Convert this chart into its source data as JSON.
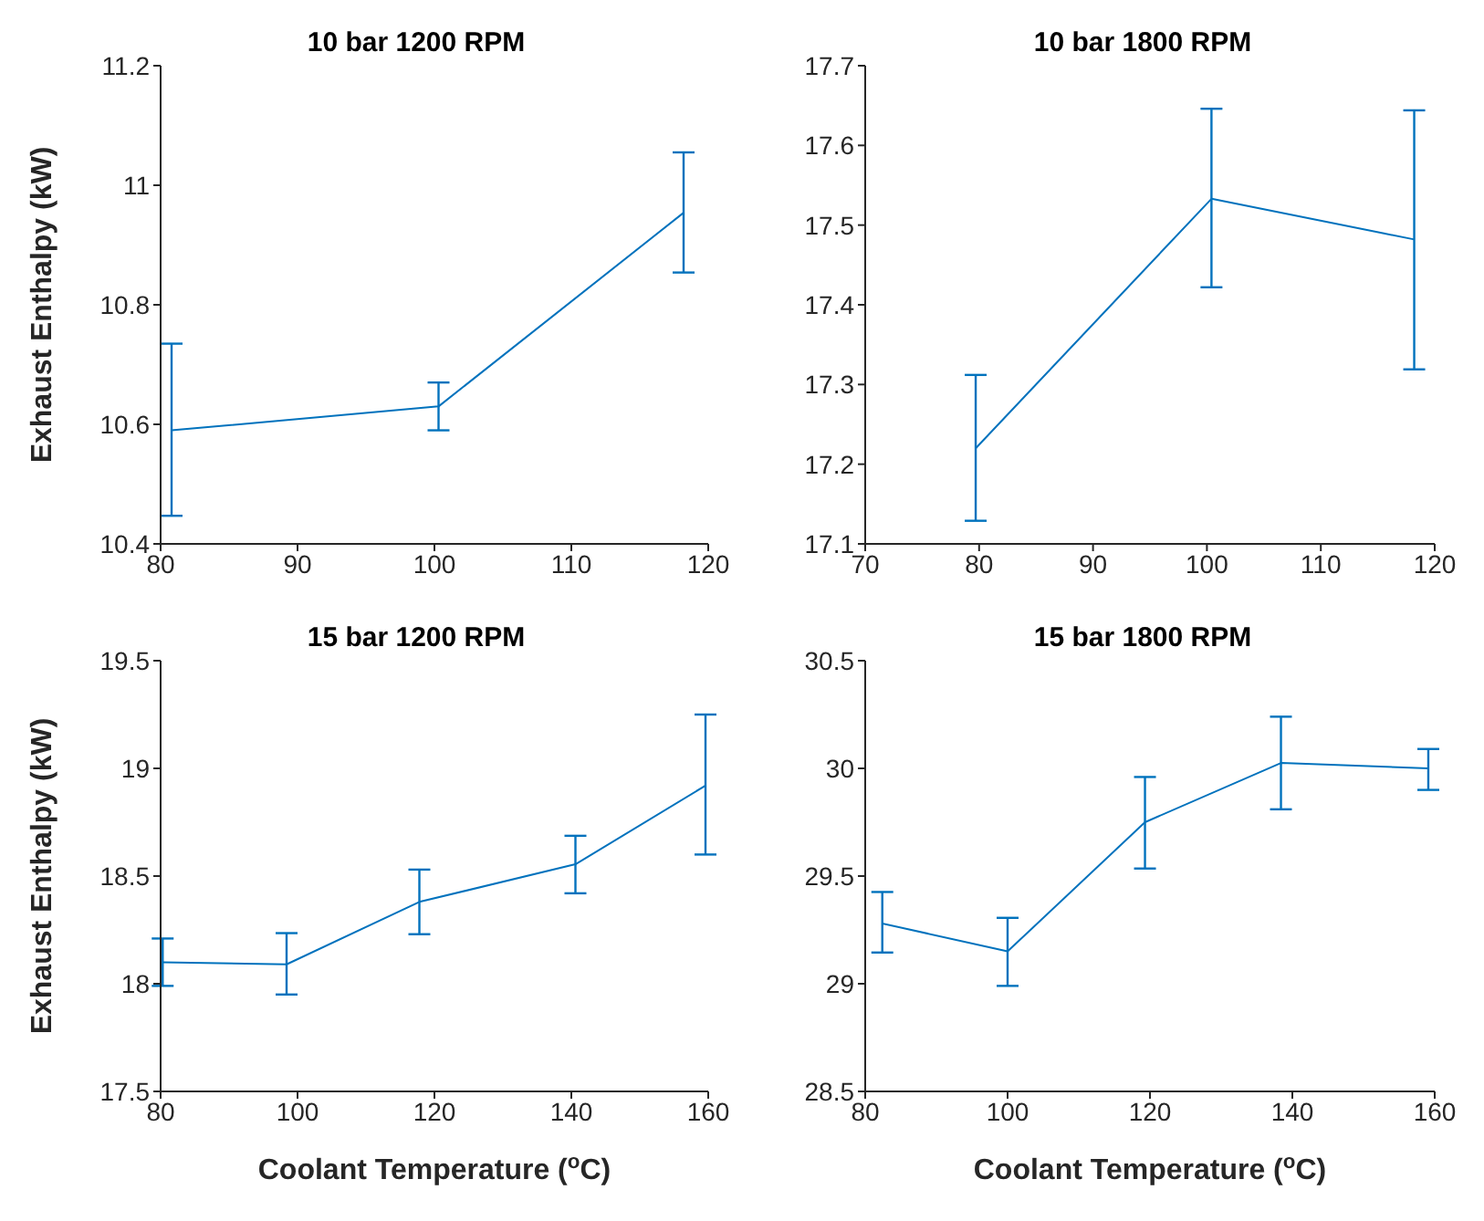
{
  "chart_data": [
    {
      "type": "line",
      "title": "10 bar 1200 RPM",
      "ylabel": "Exhaust Enthalpy (kW)",
      "x": [
        80.8,
        100.3,
        118.2
      ],
      "series": [
        {
          "color": "#0072bd",
          "values": [
            10.59,
            10.63,
            10.954
          ],
          "errors": [
            [
              10.447,
              10.735
            ],
            [
              10.59,
              10.67
            ],
            [
              10.854,
              11.055
            ]
          ]
        }
      ],
      "xlim": [
        80,
        120
      ],
      "xticks": [
        80,
        90,
        100,
        110,
        120
      ],
      "ylim": [
        10.4,
        11.2
      ],
      "yticks": [
        10.4,
        10.6,
        10.8,
        11,
        11.2
      ],
      "grid": false,
      "legend": false,
      "marker": "none",
      "line_style": "solid"
    },
    {
      "type": "line",
      "title": "10 bar 1800 RPM",
      "x": [
        79.7,
        100.4,
        118.2
      ],
      "series": [
        {
          "color": "#0072bd",
          "values": [
            17.22,
            17.533,
            17.482
          ],
          "errors": [
            [
              17.129,
              17.312
            ],
            [
              17.422,
              17.646
            ],
            [
              17.319,
              17.644
            ]
          ]
        }
      ],
      "xlim": [
        70,
        120
      ],
      "xticks": [
        70,
        80,
        90,
        100,
        110,
        120
      ],
      "ylim": [
        17.1,
        17.7
      ],
      "yticks": [
        17.1,
        17.2,
        17.3,
        17.4,
        17.5,
        17.6,
        17.7
      ],
      "grid": false,
      "legend": false,
      "marker": "none",
      "line_style": "solid"
    },
    {
      "type": "line",
      "title": "15 bar 1200 RPM",
      "xlabel": "Coolant Temperature ($^{o}$C)",
      "ylabel": "Exhaust Enthalpy (kW)",
      "x": [
        80.3,
        98.4,
        117.8,
        140.6,
        159.6
      ],
      "series": [
        {
          "color": "#0072bd",
          "values": [
            18.1,
            18.09,
            18.38,
            18.555,
            18.92
          ],
          "errors": [
            [
              17.99,
              18.21
            ],
            [
              17.95,
              18.235
            ],
            [
              18.23,
              18.53
            ],
            [
              18.42,
              18.687
            ],
            [
              18.6,
              19.25
            ]
          ]
        }
      ],
      "xlim": [
        80,
        160
      ],
      "xticks": [
        80,
        100,
        120,
        140,
        160
      ],
      "ylim": [
        17.5,
        19.5
      ],
      "yticks": [
        17.5,
        18,
        18.5,
        19,
        19.5
      ],
      "grid": false,
      "legend": false,
      "marker": "none",
      "line_style": "solid"
    },
    {
      "type": "line",
      "title": "15 bar 1800 RPM",
      "xlabel": "Coolant Temperature ($^{o}$C)",
      "x": [
        82.4,
        100,
        119.3,
        138.4,
        159.1
      ],
      "series": [
        {
          "color": "#0072bd",
          "values": [
            29.28,
            29.15,
            29.75,
            30.025,
            30.0
          ],
          "errors": [
            [
              29.145,
              29.426
            ],
            [
              28.99,
              29.306
            ],
            [
              29.535,
              29.96
            ],
            [
              29.81,
              30.24
            ],
            [
              29.9,
              30.09
            ]
          ]
        }
      ],
      "xlim": [
        80,
        160
      ],
      "xticks": [
        80,
        100,
        120,
        140,
        160
      ],
      "ylim": [
        28.5,
        30.5
      ],
      "yticks": [
        28.5,
        29,
        29.5,
        30,
        30.5
      ],
      "grid": false,
      "legend": false,
      "marker": "none",
      "line_style": "solid"
    }
  ]
}
